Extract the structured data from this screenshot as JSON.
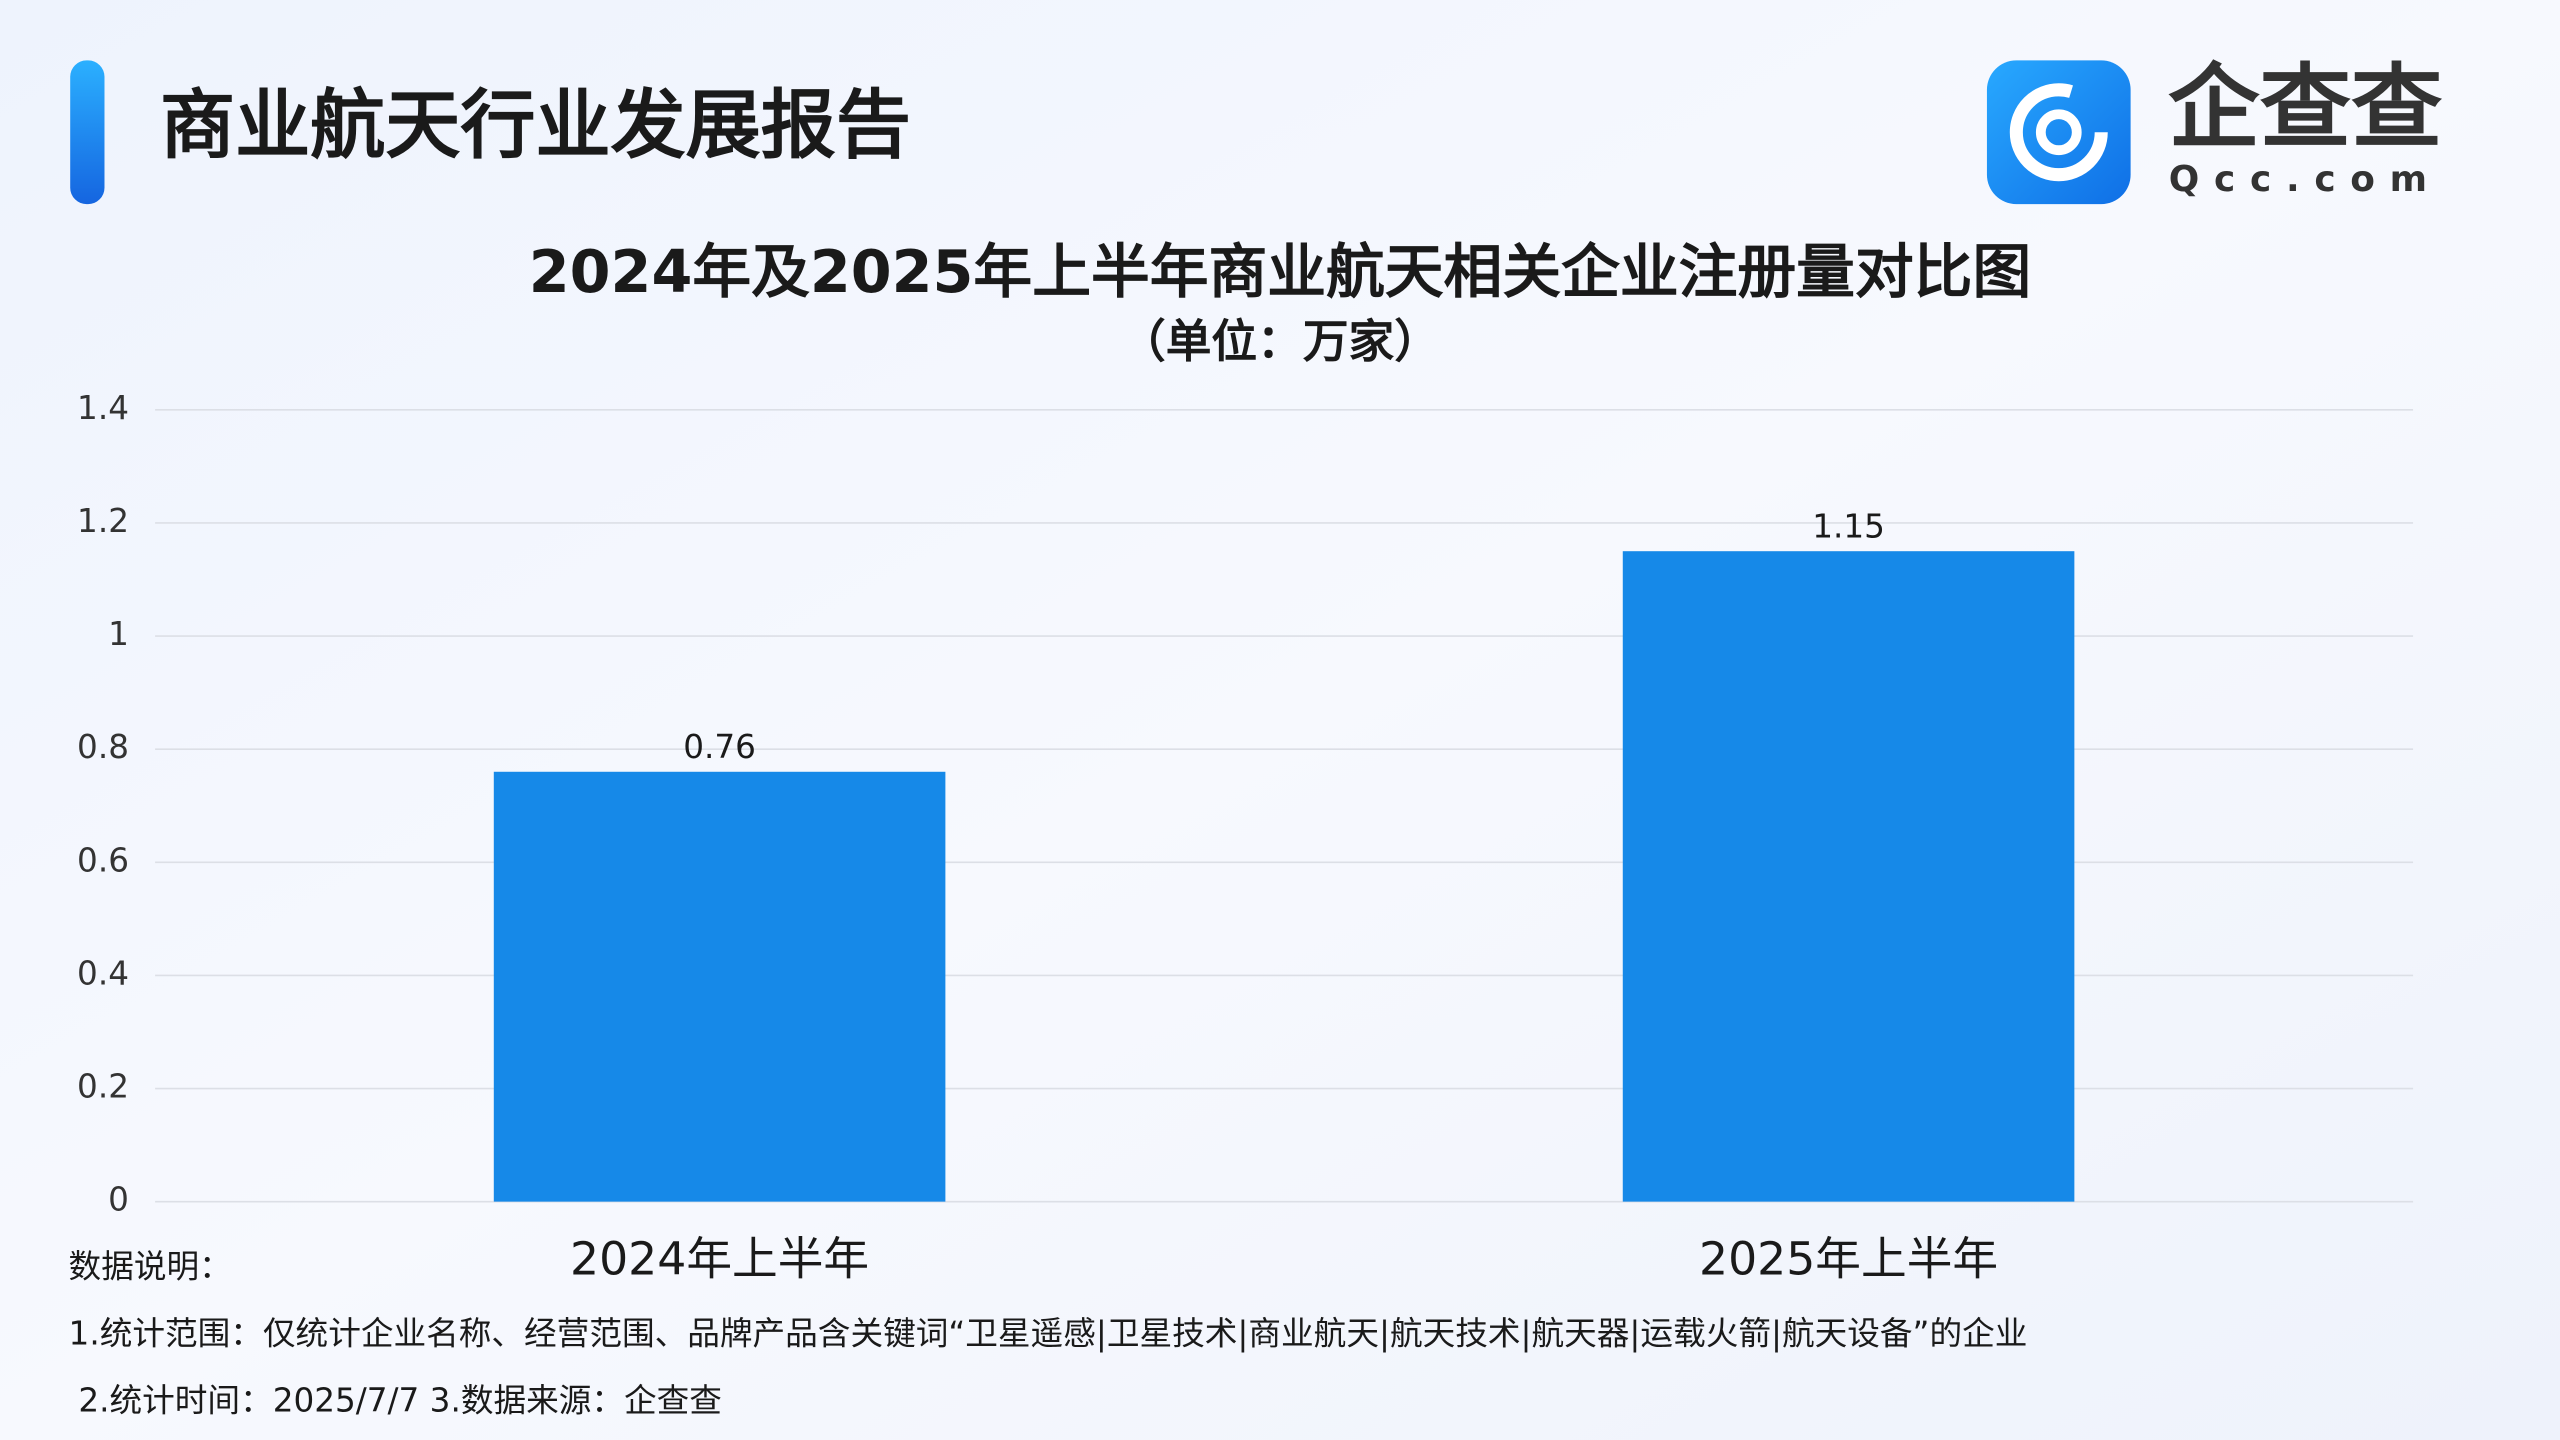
{
  "header": {
    "title": "商业航天行业发展报告",
    "logo_name": "企查查",
    "logo_domain": "Qcc.com"
  },
  "chart_data": {
    "type": "bar",
    "title": "2024年及2025年上半年商业航天相关企业注册量对比图",
    "subtitle": "（单位：万家）",
    "categories": [
      "2024年上半年",
      "2025年上半年"
    ],
    "values": [
      0.76,
      1.15
    ],
    "color": "#1689e8",
    "ylim": [
      0,
      1.4
    ],
    "yticks": [
      0,
      0.2,
      0.4,
      0.6,
      0.8,
      1,
      1.2,
      1.4
    ],
    "grid": true
  },
  "notes": {
    "heading": "数据说明：",
    "lines": [
      "1.统计范围：仅统计企业名称、经营范围、品牌产品含关键词“卫星遥感|卫星技术|商业航天|航天技术|航天器|运载火箭|航天设备”的企业",
      "2.统计时间：2025/7/7  3.数据来源：企查查"
    ]
  }
}
